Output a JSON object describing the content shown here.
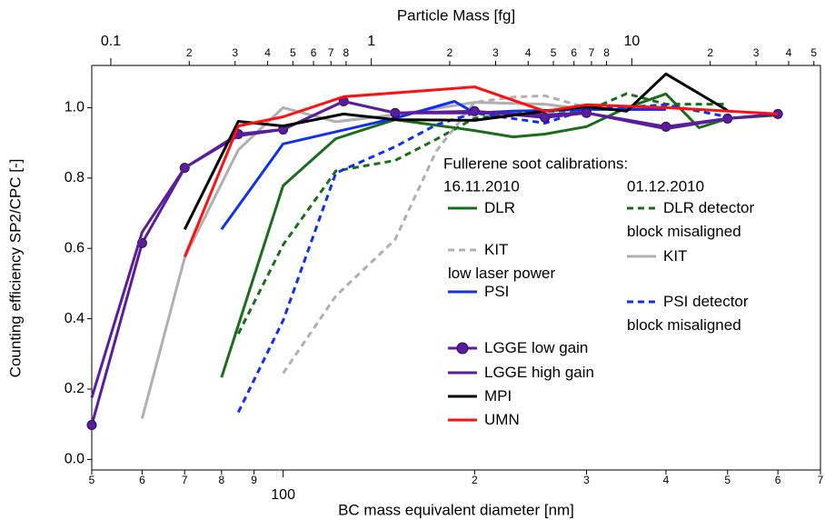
{
  "chart_data": {
    "type": "line",
    "xlabel": "BC mass equivalent diameter [nm]",
    "x2label": "Particle Mass [fg]",
    "ylabel": "Counting efficiency SP2/CPC [-]",
    "legend_title": "Fullerene soot calibrations:",
    "legend_groups": [
      "16.11.2010",
      "01.12.2010"
    ],
    "xscale": "log",
    "x2scale": "log",
    "grid": false,
    "xlim": [
      50,
      700
    ],
    "xticks": [
      {
        "value": 50,
        "label": "5"
      },
      {
        "value": 60,
        "label": "6"
      },
      {
        "value": 70,
        "label": "7"
      },
      {
        "value": 80,
        "label": "8"
      },
      {
        "value": 90,
        "label": "9"
      },
      100,
      {
        "value": 200,
        "label": "2"
      },
      {
        "value": 300,
        "label": "3"
      },
      {
        "value": 400,
        "label": "4"
      },
      {
        "value": 500,
        "label": "5"
      },
      {
        "value": 600,
        "label": "6"
      },
      {
        "value": 700,
        "label": "7"
      }
    ],
    "x2lim": [
      0.0845,
      53
    ],
    "x2ticks": [
      0.1,
      {
        "value": 0.2,
        "label": "2"
      },
      {
        "value": 0.3,
        "label": "3"
      },
      {
        "value": 0.4,
        "label": "4"
      },
      {
        "value": 0.5,
        "label": "5"
      },
      {
        "value": 0.6,
        "label": "6"
      },
      {
        "value": 0.7,
        "label": "7"
      },
      {
        "value": 0.8,
        "label": "8"
      },
      1,
      {
        "value": 2,
        "label": "2"
      },
      {
        "value": 3,
        "label": "3"
      },
      {
        "value": 4,
        "label": "4"
      },
      {
        "value": 5,
        "label": "5"
      },
      {
        "value": 6,
        "label": "6"
      },
      {
        "value": 7,
        "label": "7"
      },
      {
        "value": 8,
        "label": "8"
      },
      10,
      {
        "value": 20,
        "label": "2"
      },
      {
        "value": 30,
        "label": "3"
      },
      {
        "value": 40,
        "label": "4"
      },
      {
        "value": 50,
        "label": "5"
      }
    ],
    "ylim": [
      -0.03,
      1.12
    ],
    "yticks": [
      {
        "value": 0,
        "label": "0.0"
      },
      {
        "value": 0.2,
        "label": "0.2"
      },
      {
        "value": 0.4,
        "label": "0.4"
      },
      {
        "value": 0.6,
        "label": "0.6"
      },
      {
        "value": 0.8,
        "label": "0.8"
      },
      {
        "value": 1,
        "label": "1.0"
      }
    ],
    "series": [
      {
        "name": "DLR",
        "color": "#1a6e1a",
        "dash": false,
        "x": [
          80,
          100,
          121,
          150,
          200,
          230,
          258,
          300,
          347,
          400,
          451,
          500,
          600
        ],
        "values": [
          0.233,
          0.778,
          0.912,
          0.966,
          0.935,
          0.917,
          0.925,
          0.946,
          1.0,
          1.039,
          0.943,
          0.969,
          0.979
        ]
      },
      {
        "name": "DLR detector\nblock misaligned",
        "color": "#1a6e1a",
        "dash": true,
        "x": [
          85,
          100,
          121,
          150,
          174,
          200,
          258,
          300,
          347,
          400,
          500
        ],
        "values": [
          0.357,
          0.61,
          0.82,
          0.85,
          0.91,
          0.97,
          0.99,
          0.99,
          1.04,
          1.01,
          1.01
        ]
      },
      {
        "name": "KIT\nlow laser power",
        "color": "#b0b0b0",
        "dash": true,
        "x": [
          100,
          121,
          150,
          174,
          200,
          230,
          258,
          300
        ],
        "values": [
          0.245,
          0.465,
          0.625,
          0.876,
          1.015,
          1.03,
          1.034,
          1.0
        ]
      },
      {
        "name": "KIT",
        "color": "#b0b0b0",
        "dash": false,
        "x": [
          60,
          70,
          85,
          100,
          121,
          150,
          200,
          258,
          300,
          400
        ],
        "values": [
          0.116,
          0.574,
          0.88,
          1.0,
          0.96,
          0.98,
          1.015,
          1.01,
          0.995,
          0.995
        ]
      },
      {
        "name": "PSI",
        "color": "#1030f0",
        "dash": false,
        "x": [
          80,
          100,
          150,
          186,
          200,
          230,
          300,
          400
        ],
        "values": [
          0.654,
          0.897,
          0.97,
          1.018,
          0.985,
          0.99,
          0.995,
          0.995
        ]
      },
      {
        "name": "PSI detector\nblock misaligned",
        "color": "#1030f0",
        "dash": true,
        "x": [
          85,
          100,
          121,
          150,
          174,
          200,
          258,
          300,
          400,
          500
        ],
        "values": [
          0.134,
          0.395,
          0.814,
          0.889,
          0.951,
          0.985,
          0.956,
          0.995,
          1.008,
          0.974
        ]
      },
      {
        "name": "LGGE low gain",
        "color": "#5a1e9c",
        "dash": false,
        "marker": "circle",
        "x": [
          50,
          60,
          70,
          85,
          100,
          124.5,
          150,
          200,
          258,
          300,
          400,
          500,
          600
        ],
        "values": [
          0.098,
          0.615,
          0.829,
          0.925,
          0.938,
          1.018,
          0.985,
          0.99,
          0.972,
          0.985,
          0.946,
          0.969,
          0.982
        ]
      },
      {
        "name": "LGGE high gain",
        "color": "#5a1e9c",
        "dash": false,
        "x": [
          50,
          60,
          70,
          85,
          100,
          124.5,
          150,
          200,
          258,
          300,
          400,
          500,
          600
        ],
        "values": [
          0.176,
          0.646,
          0.829,
          0.92,
          0.938,
          1.018,
          0.985,
          0.985,
          0.98,
          0.985,
          0.94,
          0.969,
          0.982
        ]
      },
      {
        "name": "MPI",
        "color": "#000000",
        "dash": false,
        "x": [
          70,
          85,
          100,
          124.5,
          150,
          200,
          258,
          300,
          347,
          400,
          500
        ],
        "values": [
          0.654,
          0.961,
          0.948,
          0.982,
          0.966,
          0.964,
          0.99,
          1.003,
          0.99,
          1.096,
          0.992
        ]
      },
      {
        "name": "UMN",
        "color": "#ff1010",
        "dash": false,
        "x": [
          70,
          85,
          100,
          124.5,
          200,
          258,
          300,
          400,
          600
        ],
        "values": [
          0.576,
          0.948,
          0.974,
          1.031,
          1.059,
          0.99,
          1.008,
          1.0,
          0.982
        ]
      }
    ]
  }
}
